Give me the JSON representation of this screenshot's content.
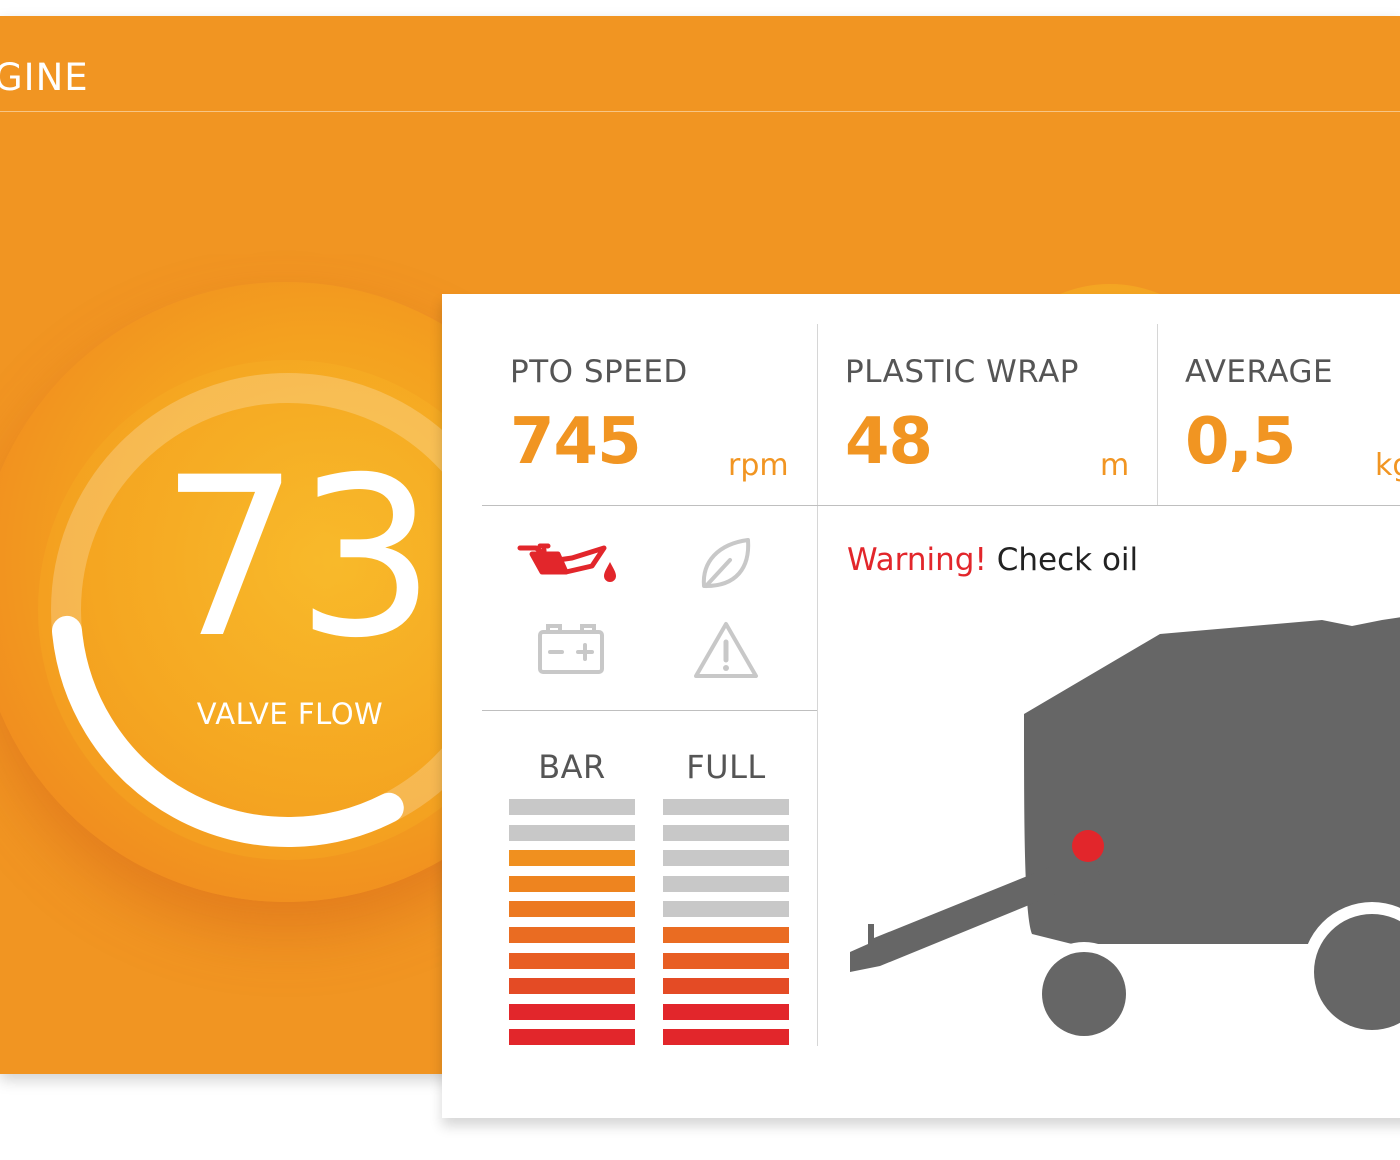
{
  "header": {
    "title": "GINE"
  },
  "gauge": {
    "value": "73",
    "label": "VALVE FLOW",
    "fraction": 0.73
  },
  "metrics": [
    {
      "label": "PTO SPEED",
      "value": "745",
      "unit": "rpm"
    },
    {
      "label": "PLASTIC WRAP",
      "value": "48",
      "unit": "m"
    },
    {
      "label": "AVERAGE",
      "value": "0,5",
      "unit": "kg"
    }
  ],
  "status_icons": [
    {
      "name": "oil-can-icon",
      "state": "alert"
    },
    {
      "name": "leaf-icon",
      "state": "inactive"
    },
    {
      "name": "battery-icon",
      "state": "inactive"
    },
    {
      "name": "warning-triangle-icon",
      "state": "inactive"
    }
  ],
  "warning": {
    "prefix": "Warning!",
    "message": "Check oil"
  },
  "levels": [
    {
      "label": "BAR",
      "segments": 10,
      "filled": 8
    },
    {
      "label": "FULL",
      "segments": 10,
      "filled": 5
    }
  ],
  "colors": {
    "accent": "#f19522",
    "alert": "#e2262b",
    "inactive": "#c8c8c8",
    "machine": "#666666"
  }
}
